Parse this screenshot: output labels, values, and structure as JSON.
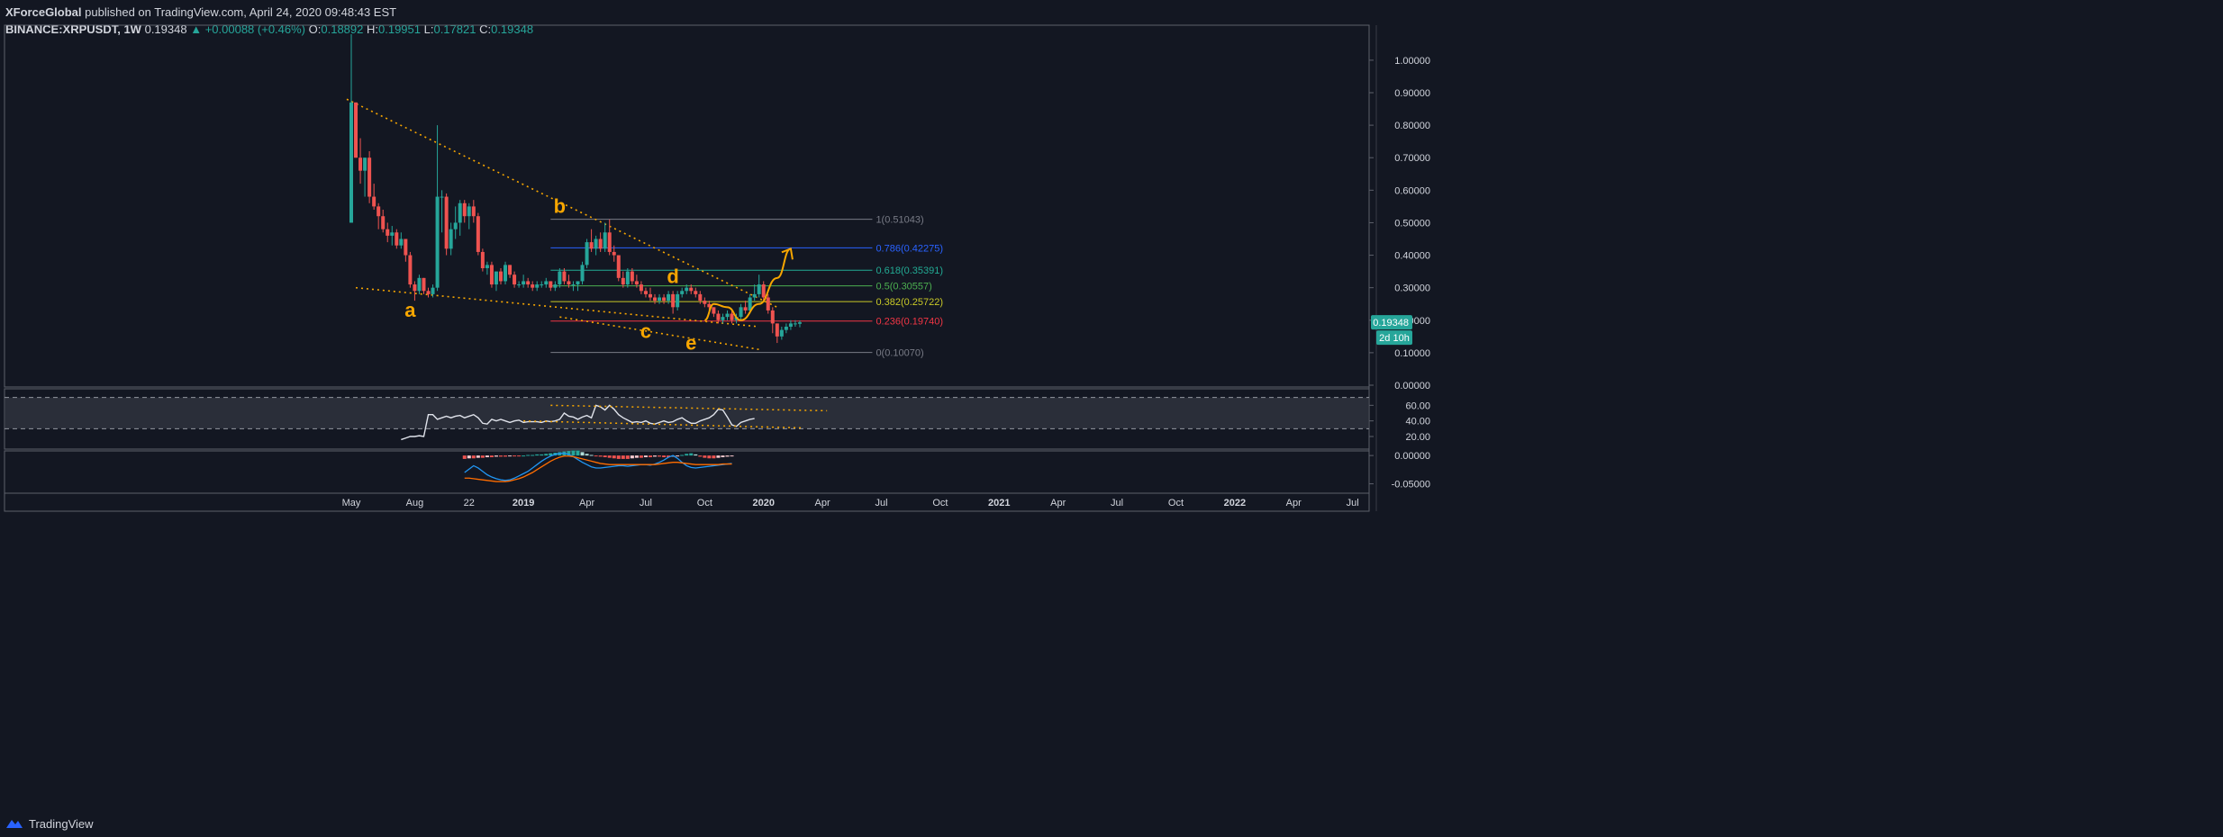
{
  "header": {
    "publisher": "XForceGlobal",
    "published_text": "published on TradingView.com, April 24, 2020 09:48:43 EST",
    "symbol": "BINANCE:XRPUSDT, 1W",
    "last": "0.19348",
    "change": "▲ +0.00088 (+0.46%)",
    "ohlc": [
      {
        "label": "O:",
        "value": "0.18892"
      },
      {
        "label": "H:",
        "value": "0.19951"
      },
      {
        "label": "L:",
        "value": "0.17821"
      },
      {
        "label": "C:",
        "value": "0.19348"
      }
    ]
  },
  "footer": {
    "brand": "TradingView",
    "logo_icon": "tradingview-logo-icon"
  },
  "colors": {
    "background": "#131722",
    "up": "#26a69a",
    "down": "#ef5350",
    "annotation": "#f7a600",
    "grid_border": "#5d606b",
    "text": "#d1d4dc"
  },
  "chart_data": {
    "type": "candlestick",
    "price_axis": {
      "ticks": [
        "1.00000",
        "0.90000",
        "0.80000",
        "0.70000",
        "0.60000",
        "0.50000",
        "0.40000",
        "0.30000",
        "0.20000",
        "0.10000",
        "0.00000"
      ],
      "tick_values": [
        1.0,
        0.9,
        0.8,
        0.7,
        0.6,
        0.5,
        0.4,
        0.3,
        0.2,
        0.1,
        0.0
      ],
      "range": [
        0,
        1.08
      ],
      "last_price_label": "0.19348",
      "countdown_label": "2d 10h"
    },
    "time_axis": {
      "labels": [
        "May",
        "Aug",
        "22",
        "2019",
        "Apr",
        "Jul",
        "Oct",
        "2020",
        "Apr",
        "Jul",
        "Oct",
        "2021",
        "Apr",
        "Jul",
        "Oct",
        "2022",
        "Apr",
        "Jul"
      ],
      "label_weeks": [
        0,
        14,
        26,
        38,
        52,
        65,
        78,
        91,
        104,
        117,
        130,
        143,
        156,
        169,
        182,
        195,
        208,
        221
      ],
      "start": "May 2018",
      "unit": "week"
    },
    "candles": [
      [
        0.5,
        1.08,
        0.5,
        0.87
      ],
      [
        0.87,
        0.87,
        0.7,
        0.7
      ],
      [
        0.7,
        0.76,
        0.62,
        0.66
      ],
      [
        0.66,
        0.7,
        0.58,
        0.7
      ],
      [
        0.7,
        0.72,
        0.56,
        0.58
      ],
      [
        0.58,
        0.62,
        0.54,
        0.55
      ],
      [
        0.55,
        0.56,
        0.48,
        0.52
      ],
      [
        0.52,
        0.54,
        0.47,
        0.48
      ],
      [
        0.48,
        0.5,
        0.44,
        0.46
      ],
      [
        0.46,
        0.49,
        0.43,
        0.47
      ],
      [
        0.47,
        0.48,
        0.42,
        0.43
      ],
      [
        0.43,
        0.47,
        0.42,
        0.45
      ],
      [
        0.45,
        0.45,
        0.38,
        0.4
      ],
      [
        0.4,
        0.41,
        0.3,
        0.31
      ],
      [
        0.31,
        0.32,
        0.26,
        0.29
      ],
      [
        0.29,
        0.34,
        0.28,
        0.33
      ],
      [
        0.33,
        0.33,
        0.28,
        0.29
      ],
      [
        0.29,
        0.3,
        0.27,
        0.28
      ],
      [
        0.28,
        0.31,
        0.27,
        0.3
      ],
      [
        0.3,
        0.8,
        0.29,
        0.58
      ],
      [
        0.58,
        0.6,
        0.47,
        0.58
      ],
      [
        0.58,
        0.59,
        0.4,
        0.42
      ],
      [
        0.42,
        0.5,
        0.4,
        0.48
      ],
      [
        0.48,
        0.55,
        0.45,
        0.5
      ],
      [
        0.5,
        0.57,
        0.46,
        0.56
      ],
      [
        0.56,
        0.57,
        0.5,
        0.52
      ],
      [
        0.52,
        0.56,
        0.48,
        0.55
      ],
      [
        0.55,
        0.57,
        0.5,
        0.52
      ],
      [
        0.52,
        0.53,
        0.4,
        0.41
      ],
      [
        0.41,
        0.42,
        0.35,
        0.36
      ],
      [
        0.36,
        0.38,
        0.34,
        0.37
      ],
      [
        0.37,
        0.38,
        0.3,
        0.31
      ],
      [
        0.31,
        0.35,
        0.29,
        0.35
      ],
      [
        0.35,
        0.36,
        0.31,
        0.32
      ],
      [
        0.32,
        0.38,
        0.31,
        0.37
      ],
      [
        0.37,
        0.37,
        0.33,
        0.34
      ],
      [
        0.34,
        0.35,
        0.3,
        0.31
      ],
      [
        0.31,
        0.32,
        0.3,
        0.31
      ],
      [
        0.31,
        0.34,
        0.3,
        0.32
      ],
      [
        0.32,
        0.33,
        0.3,
        0.31
      ],
      [
        0.31,
        0.32,
        0.29,
        0.3
      ],
      [
        0.3,
        0.32,
        0.29,
        0.31
      ],
      [
        0.31,
        0.32,
        0.3,
        0.31
      ],
      [
        0.31,
        0.33,
        0.3,
        0.32
      ],
      [
        0.32,
        0.32,
        0.29,
        0.3
      ],
      [
        0.3,
        0.32,
        0.29,
        0.31
      ],
      [
        0.31,
        0.36,
        0.3,
        0.35
      ],
      [
        0.35,
        0.36,
        0.31,
        0.32
      ],
      [
        0.32,
        0.34,
        0.3,
        0.31
      ],
      [
        0.31,
        0.32,
        0.29,
        0.31
      ],
      [
        0.31,
        0.32,
        0.29,
        0.32
      ],
      [
        0.32,
        0.38,
        0.31,
        0.37
      ],
      [
        0.37,
        0.45,
        0.36,
        0.44
      ],
      [
        0.44,
        0.48,
        0.41,
        0.42
      ],
      [
        0.42,
        0.46,
        0.4,
        0.45
      ],
      [
        0.45,
        0.47,
        0.41,
        0.42
      ],
      [
        0.42,
        0.5,
        0.41,
        0.47
      ],
      [
        0.47,
        0.51,
        0.4,
        0.41
      ],
      [
        0.41,
        0.43,
        0.38,
        0.4
      ],
      [
        0.4,
        0.4,
        0.32,
        0.33
      ],
      [
        0.33,
        0.35,
        0.3,
        0.31
      ],
      [
        0.31,
        0.36,
        0.3,
        0.35
      ],
      [
        0.35,
        0.36,
        0.31,
        0.32
      ],
      [
        0.32,
        0.34,
        0.3,
        0.31
      ],
      [
        0.31,
        0.32,
        0.28,
        0.29
      ],
      [
        0.29,
        0.3,
        0.27,
        0.28
      ],
      [
        0.28,
        0.3,
        0.26,
        0.27
      ],
      [
        0.27,
        0.28,
        0.25,
        0.26
      ],
      [
        0.26,
        0.28,
        0.25,
        0.27
      ],
      [
        0.27,
        0.28,
        0.25,
        0.26
      ],
      [
        0.26,
        0.29,
        0.25,
        0.28
      ],
      [
        0.28,
        0.29,
        0.22,
        0.24
      ],
      [
        0.24,
        0.29,
        0.23,
        0.28
      ],
      [
        0.28,
        0.3,
        0.27,
        0.29
      ],
      [
        0.29,
        0.31,
        0.28,
        0.3
      ],
      [
        0.3,
        0.31,
        0.28,
        0.29
      ],
      [
        0.29,
        0.3,
        0.27,
        0.28
      ],
      [
        0.28,
        0.29,
        0.25,
        0.26
      ],
      [
        0.26,
        0.27,
        0.24,
        0.25
      ],
      [
        0.25,
        0.26,
        0.23,
        0.24
      ],
      [
        0.24,
        0.24,
        0.21,
        0.22
      ],
      [
        0.22,
        0.23,
        0.19,
        0.2
      ],
      [
        0.2,
        0.22,
        0.19,
        0.21
      ],
      [
        0.21,
        0.23,
        0.2,
        0.22
      ],
      [
        0.22,
        0.23,
        0.19,
        0.2
      ],
      [
        0.2,
        0.22,
        0.19,
        0.21
      ],
      [
        0.21,
        0.25,
        0.2,
        0.24
      ],
      [
        0.24,
        0.26,
        0.22,
        0.23
      ],
      [
        0.23,
        0.28,
        0.22,
        0.27
      ],
      [
        0.27,
        0.31,
        0.26,
        0.28
      ],
      [
        0.28,
        0.34,
        0.27,
        0.31
      ],
      [
        0.31,
        0.32,
        0.26,
        0.27
      ],
      [
        0.27,
        0.28,
        0.22,
        0.23
      ],
      [
        0.23,
        0.24,
        0.16,
        0.19
      ],
      [
        0.19,
        0.19,
        0.13,
        0.15
      ],
      [
        0.15,
        0.18,
        0.14,
        0.17
      ],
      [
        0.17,
        0.19,
        0.16,
        0.18
      ],
      [
        0.18,
        0.2,
        0.17,
        0.19
      ],
      [
        0.19,
        0.2,
        0.18,
        0.19
      ],
      [
        0.1889,
        0.1995,
        0.1782,
        0.1935
      ]
    ],
    "trendlines": [
      {
        "from": [
          -1,
          0.88
        ],
        "to": [
          94,
          0.24
        ]
      },
      {
        "from": [
          1,
          0.3
        ],
        "to": [
          90,
          0.18
        ]
      },
      {
        "from": [
          46,
          0.21
        ],
        "to": [
          90,
          0.11
        ]
      }
    ],
    "wave_labels": [
      {
        "text": "a",
        "week": 13,
        "price": 0.21
      },
      {
        "text": "b",
        "week": 46,
        "price": 0.53
      },
      {
        "text": "c",
        "week": 65,
        "price": 0.145
      },
      {
        "text": "d",
        "week": 71,
        "price": 0.315
      },
      {
        "text": "e",
        "week": 75,
        "price": 0.11
      }
    ],
    "fibonacci": {
      "start_week": 44,
      "end_week": 115,
      "levels": [
        {
          "label": "1(0.51043)",
          "value": 0.51043,
          "color": "#787b86"
        },
        {
          "label": "0.786(0.42275)",
          "value": 0.42275,
          "color": "#2962ff"
        },
        {
          "label": "0.618(0.35391)",
          "value": 0.35391,
          "color": "#22ab94"
        },
        {
          "label": "0.5(0.30557)",
          "value": 0.30557,
          "color": "#4caf50"
        },
        {
          "label": "0.382(0.25722)",
          "value": 0.25722,
          "color": "#c9c927"
        },
        {
          "label": "0.236(0.19740)",
          "value": 0.1974,
          "color": "#f23645"
        },
        {
          "label": "0(0.10070)",
          "value": 0.1007,
          "color": "#787b86"
        }
      ]
    },
    "projection": {
      "points": [
        [
          78,
          0.2
        ],
        [
          80,
          0.25
        ],
        [
          83,
          0.24
        ],
        [
          86,
          0.2
        ],
        [
          90,
          0.25
        ],
        [
          94,
          0.33
        ],
        [
          97,
          0.42
        ]
      ]
    },
    "rsi": {
      "ticks": [
        "60.00",
        "40.00",
        "20.00"
      ],
      "tick_values": [
        60,
        40,
        20
      ],
      "range": [
        5,
        80
      ],
      "bands": [
        70,
        30
      ],
      "start_week": 11,
      "values": [
        16,
        18,
        20,
        20,
        21,
        20,
        48,
        48,
        42,
        44,
        46,
        44,
        46,
        47,
        44,
        46,
        48,
        44,
        37,
        36,
        42,
        40,
        42,
        40,
        38,
        40,
        41,
        38,
        39,
        39,
        39,
        38,
        40,
        39,
        40,
        42,
        50,
        46,
        45,
        42,
        45,
        47,
        44,
        60,
        58,
        54,
        60,
        55,
        48,
        44,
        41,
        38,
        39,
        38,
        40,
        37,
        36,
        38,
        40,
        38,
        39,
        42,
        44,
        40,
        37,
        37,
        40,
        42,
        44,
        48,
        55,
        54,
        45,
        35,
        33,
        38,
        40,
        42,
        43
      ],
      "trendlines": [
        {
          "from": [
            44,
            60
          ],
          "to": [
            105,
            53
          ]
        },
        {
          "from": [
            38,
            40
          ],
          "to": [
            100,
            31
          ]
        }
      ]
    },
    "macd": {
      "ticks": [
        "0.00000",
        "-0.05000"
      ],
      "tick_values": [
        0,
        -0.05
      ],
      "range": [
        -0.065,
        0.005
      ],
      "start_week": 25,
      "histogram": [
        -0.006,
        -0.005,
        -0.005,
        -0.004,
        -0.004,
        -0.003,
        -0.003,
        -0.002,
        -0.002,
        -0.002,
        -0.001,
        -0.001,
        -0.001,
        0,
        0.001,
        0.001,
        0.002,
        0.002,
        0.003,
        0.004,
        0.005,
        0.006,
        0.007,
        0.008,
        0.009,
        0.009,
        0.006,
        0.003,
        0.001,
        -0.001,
        -0.002,
        -0.003,
        -0.004,
        -0.005,
        -0.006,
        -0.006,
        -0.006,
        -0.005,
        -0.004,
        -0.004,
        -0.003,
        -0.003,
        -0.002,
        -0.002,
        -0.003,
        -0.003,
        -0.002,
        -0.001,
        0.001,
        0.003,
        0.004,
        0.002,
        -0.002,
        -0.004,
        -0.005,
        -0.005,
        -0.004,
        -0.003,
        -0.002,
        -0.001
      ],
      "macd_line": [
        -0.03,
        -0.024,
        -0.018,
        -0.022,
        -0.028,
        -0.034,
        -0.038,
        -0.041,
        -0.043,
        -0.044,
        -0.043,
        -0.04,
        -0.036,
        -0.032,
        -0.028,
        -0.022,
        -0.016,
        -0.01,
        -0.005,
        -0.001,
        0.002,
        0.004,
        0.004,
        0.002,
        -0.002,
        -0.007,
        -0.012,
        -0.016,
        -0.02,
        -0.022,
        -0.022,
        -0.021,
        -0.02,
        -0.019,
        -0.018,
        -0.018,
        -0.019,
        -0.018,
        -0.017,
        -0.016,
        -0.016,
        -0.017,
        -0.015,
        -0.012,
        -0.008,
        -0.003,
        0.0,
        -0.005,
        -0.012,
        -0.018,
        -0.021,
        -0.022,
        -0.021,
        -0.02,
        -0.019,
        -0.018,
        -0.017,
        -0.016,
        -0.015,
        -0.014
      ],
      "signal_line": [
        -0.04,
        -0.04,
        -0.041,
        -0.042,
        -0.043,
        -0.044,
        -0.045,
        -0.046,
        -0.046,
        -0.046,
        -0.045,
        -0.043,
        -0.041,
        -0.038,
        -0.034,
        -0.03,
        -0.025,
        -0.02,
        -0.015,
        -0.01,
        -0.006,
        -0.003,
        -0.001,
        -0.001,
        -0.002,
        -0.004,
        -0.006,
        -0.008,
        -0.01,
        -0.012,
        -0.014,
        -0.015,
        -0.016,
        -0.016,
        -0.016,
        -0.016,
        -0.016,
        -0.016,
        -0.016,
        -0.016,
        -0.016,
        -0.016,
        -0.016,
        -0.015,
        -0.014,
        -0.013,
        -0.012,
        -0.012,
        -0.013,
        -0.014,
        -0.015,
        -0.016,
        -0.016,
        -0.016,
        -0.016,
        -0.016,
        -0.016,
        -0.015,
        -0.015,
        -0.015
      ]
    }
  }
}
